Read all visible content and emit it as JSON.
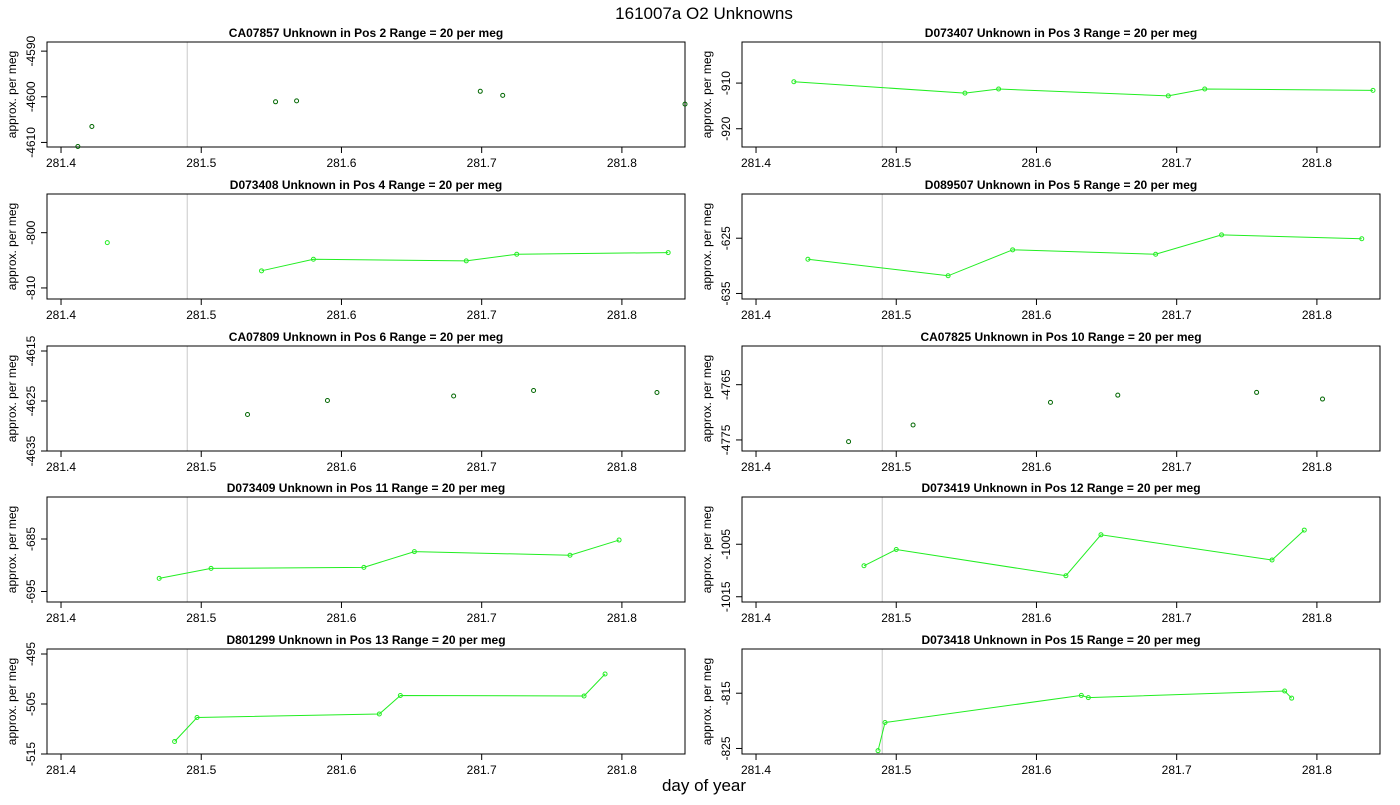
{
  "title": "161007a  O2 Unknowns",
  "xlabel": "day of year",
  "ylabel": "approx. per meg",
  "chart_data": [
    {
      "type": "scatter",
      "title": "CA07857    Unknown in Pos 2         Range = 20 per meg",
      "xlim": [
        281.39,
        281.845
      ],
      "ylim": [
        -4611,
        -4588
      ],
      "xticks": [
        281.4,
        281.5,
        281.6,
        281.7,
        281.8
      ],
      "yticks": [
        -4590,
        -4600,
        -4610
      ],
      "vlines": [
        281.49,
        281.851
      ],
      "connected": false,
      "points": [
        [
          281.412,
          -4610.9
        ],
        [
          281.422,
          -4606.5
        ],
        [
          281.553,
          -4601.1
        ],
        [
          281.568,
          -4600.9
        ],
        [
          281.699,
          -4598.8
        ],
        [
          281.715,
          -4599.7
        ],
        [
          281.845,
          -4601.6
        ]
      ]
    },
    {
      "type": "line",
      "title": "D073407    Unknown in Pos 3         Range = 20 per meg",
      "xlim": [
        281.39,
        281.845
      ],
      "ylim": [
        -924,
        -901
      ],
      "xticks": [
        281.4,
        281.5,
        281.6,
        281.7,
        281.8
      ],
      "yticks": [
        -910,
        -920
      ],
      "vlines": [
        281.49,
        281.851
      ],
      "connected": true,
      "points": [
        [
          281.427,
          -909.7
        ],
        [
          281.549,
          -912.2
        ],
        [
          281.573,
          -911.3
        ],
        [
          281.694,
          -912.8
        ],
        [
          281.72,
          -911.3
        ],
        [
          281.84,
          -911.6
        ]
      ]
    },
    {
      "type": "line",
      "title": "D073408    Unknown in Pos 4         Range = 20 per meg",
      "xlim": [
        281.39,
        281.845
      ],
      "ylim": [
        -812,
        -793
      ],
      "xticks": [
        281.4,
        281.5,
        281.6,
        281.7,
        281.8
      ],
      "yticks": [
        -800,
        -810
      ],
      "vlines": [
        281.49,
        281.851
      ],
      "connected": true,
      "points": [
        [
          281.433,
          -801.8
        ],
        [
          281.543,
          -806.9
        ],
        [
          281.58,
          -804.8
        ],
        [
          281.689,
          -805.1
        ],
        [
          281.725,
          -803.9
        ],
        [
          281.833,
          -803.6
        ]
      ],
      "line_start_index": 1
    },
    {
      "type": "line",
      "title": "D089507    Unknown in Pos 5         Range = 20 per meg",
      "xlim": [
        281.39,
        281.845
      ],
      "ylim": [
        -636,
        -617
      ],
      "xticks": [
        281.4,
        281.5,
        281.6,
        281.7,
        281.8
      ],
      "yticks": [
        -625,
        -635
      ],
      "vlines": [
        281.49,
        281.851
      ],
      "connected": true,
      "points": [
        [
          281.437,
          -628.8
        ],
        [
          281.537,
          -631.8
        ],
        [
          281.583,
          -627.1
        ],
        [
          281.685,
          -627.9
        ],
        [
          281.732,
          -624.4
        ],
        [
          281.832,
          -625.1
        ]
      ]
    },
    {
      "type": "scatter",
      "title": "CA07809    Unknown in Pos 6         Range = 20 per meg",
      "xlim": [
        281.39,
        281.845
      ],
      "ylim": [
        -4635,
        -4614
      ],
      "xticks": [
        281.4,
        281.5,
        281.6,
        281.7,
        281.8
      ],
      "yticks": [
        -4615,
        -4625,
        -4635
      ],
      "vlines": [
        281.49,
        281.851
      ],
      "connected": false,
      "points": [
        [
          281.533,
          -4627.7
        ],
        [
          281.59,
          -4624.9
        ],
        [
          281.68,
          -4624.0
        ],
        [
          281.737,
          -4622.9
        ],
        [
          281.825,
          -4623.3
        ]
      ]
    },
    {
      "type": "scatter",
      "title": "CA07825    Unknown in Pos 10         Range = 20 per meg",
      "xlim": [
        281.39,
        281.845
      ],
      "ylim": [
        -4777,
        -4758
      ],
      "xticks": [
        281.4,
        281.5,
        281.6,
        281.7,
        281.8
      ],
      "yticks": [
        -4765,
        -4775
      ],
      "vlines": [
        281.49,
        281.851
      ],
      "connected": false,
      "points": [
        [
          281.466,
          -4775.3
        ],
        [
          281.512,
          -4772.3
        ],
        [
          281.61,
          -4768.2
        ],
        [
          281.658,
          -4766.9
        ],
        [
          281.757,
          -4766.4
        ],
        [
          281.804,
          -4767.6
        ]
      ]
    },
    {
      "type": "line",
      "title": "D073409    Unknown in Pos 11         Range = 20 per meg",
      "xlim": [
        281.39,
        281.845
      ],
      "ylim": [
        -697,
        -677
      ],
      "xticks": [
        281.4,
        281.5,
        281.6,
        281.7,
        281.8
      ],
      "yticks": [
        -685,
        -695
      ],
      "vlines": [
        281.49,
        281.851
      ],
      "connected": true,
      "points": [
        [
          281.47,
          -692.5
        ],
        [
          281.507,
          -690.6
        ],
        [
          281.616,
          -690.4
        ],
        [
          281.652,
          -687.4
        ],
        [
          281.763,
          -688.1
        ],
        [
          281.798,
          -685.2
        ]
      ]
    },
    {
      "type": "line",
      "title": "D073419    Unknown in Pos 12         Range = 20 per meg",
      "xlim": [
        281.39,
        281.845
      ],
      "ylim": [
        -1016,
        -996
      ],
      "xticks": [
        281.4,
        281.5,
        281.6,
        281.7,
        281.8
      ],
      "yticks": [
        -1005,
        -1015
      ],
      "vlines": [
        281.49,
        281.851
      ],
      "connected": true,
      "points": [
        [
          281.477,
          -1009.1
        ],
        [
          281.5,
          -1006.0
        ],
        [
          281.621,
          -1011.0
        ],
        [
          281.646,
          -1003.2
        ],
        [
          281.768,
          -1008.0
        ],
        [
          281.791,
          -1002.3
        ]
      ]
    },
    {
      "type": "line",
      "title": "D801299    Unknown in Pos 13         Range = 20 per meg",
      "xlim": [
        281.39,
        281.845
      ],
      "ylim": [
        -515,
        -494
      ],
      "xticks": [
        281.4,
        281.5,
        281.6,
        281.7,
        281.8
      ],
      "yticks": [
        -495,
        -505,
        -515
      ],
      "vlines": [
        281.49,
        281.851
      ],
      "connected": true,
      "points": [
        [
          281.481,
          -512.5
        ],
        [
          281.497,
          -507.7
        ],
        [
          281.627,
          -507.0
        ],
        [
          281.642,
          -503.3
        ],
        [
          281.773,
          -503.4
        ],
        [
          281.788,
          -499.0
        ]
      ]
    },
    {
      "type": "line",
      "title": "D073418    Unknown in Pos 15         Range = 20 per meg",
      "xlim": [
        281.39,
        281.845
      ],
      "ylim": [
        -826,
        -807
      ],
      "xticks": [
        281.4,
        281.5,
        281.6,
        281.7,
        281.8
      ],
      "yticks": [
        -815,
        -825
      ],
      "vlines": [
        281.49,
        281.851
      ],
      "connected": true,
      "points": [
        [
          281.487,
          -825.4
        ],
        [
          281.492,
          -820.3
        ],
        [
          281.632,
          -815.4
        ],
        [
          281.637,
          -815.8
        ],
        [
          281.777,
          -814.6
        ],
        [
          281.782,
          -815.9
        ]
      ]
    }
  ]
}
